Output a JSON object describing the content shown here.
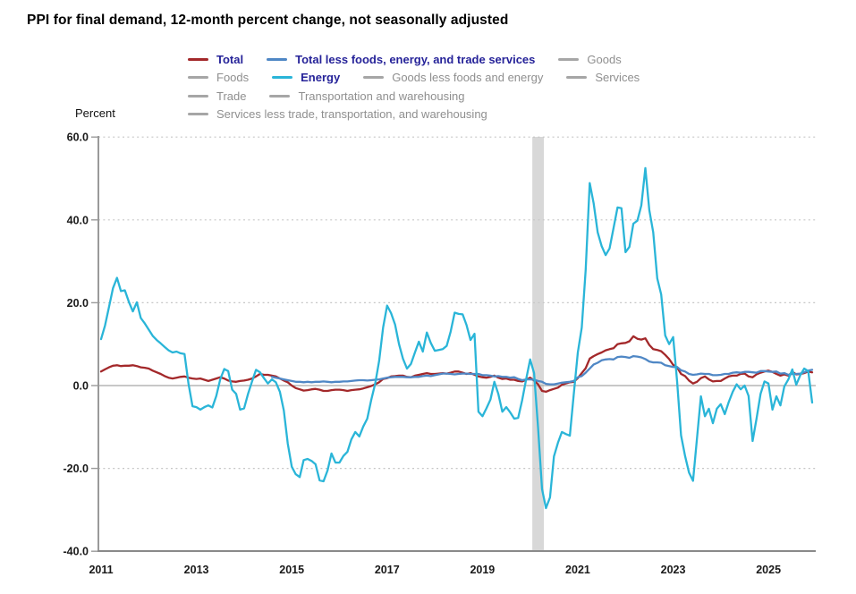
{
  "title": "PPI for final demand, 12-month percent change, not seasonally adjusted",
  "legend": {
    "active_text_color": "#262399",
    "inactive_text_color": "#8f8f8f",
    "inactive_swatch_color": "#a6a6a6",
    "rows": [
      [
        {
          "label": "Total",
          "active": true,
          "color": "#a3282a"
        },
        {
          "label": "Total less foods, energy, and trade services",
          "active": true,
          "color": "#4f87c5"
        },
        {
          "label": "Goods",
          "active": false
        }
      ],
      [
        {
          "label": "Foods",
          "active": false
        },
        {
          "label": "Energy",
          "active": true,
          "color": "#2ab5d8"
        },
        {
          "label": "Goods less foods and energy",
          "active": false
        },
        {
          "label": "Services",
          "active": false
        }
      ],
      [
        {
          "label": "Trade",
          "active": false
        },
        {
          "label": "Transportation and warehousing",
          "active": false
        }
      ],
      [
        {
          "label": "Services less trade, transportation, and warehousing",
          "active": false
        }
      ]
    ]
  },
  "chart_data": {
    "type": "line",
    "title": "PPI for final demand, 12-month percent change, not seasonally adjusted",
    "ylabel": "Percent",
    "xlabel": "",
    "ylim": [
      -40,
      60
    ],
    "y_ticks": [
      60,
      40,
      20,
      0,
      -20,
      -40
    ],
    "y_tick_labels": [
      "60.0",
      "40.0",
      "20.0",
      "0.0",
      "-20.0",
      "-40.0"
    ],
    "x_tick_labels": [
      "2011",
      "2013",
      "2015",
      "2017",
      "2019",
      "2021",
      "2023",
      "2025"
    ],
    "x_tick_years": [
      2011,
      2013,
      2015,
      2017,
      2019,
      2021,
      2023,
      2025
    ],
    "x_start": "2011-01",
    "x_end": "2025-12",
    "x_frequency": "monthly",
    "grid": "horizontal dotted at 60/40/20/-20, solid line at 0",
    "legend_position": "top",
    "axis_color": "#9a9a9a",
    "grid_color": "#c6c6c6",
    "zero_line_color": "#a8a8a8",
    "recession_shading": {
      "start": "2020-02",
      "end": "2020-04",
      "color": "#d8d8d8"
    },
    "series": [
      {
        "name": "Total",
        "color": "#a3282a",
        "values": [
          3.4,
          3.9,
          4.4,
          4.8,
          4.9,
          4.7,
          4.8,
          4.8,
          4.9,
          4.7,
          4.4,
          4.3,
          4.1,
          3.6,
          3.2,
          2.8,
          2.3,
          1.9,
          1.7,
          1.9,
          2.1,
          2.2,
          1.9,
          1.7,
          1.6,
          1.7,
          1.4,
          1.1,
          1.4,
          1.7,
          2.0,
          1.7,
          1.2,
          1.0,
          0.9,
          1.1,
          1.2,
          1.4,
          1.7,
          2.2,
          2.8,
          2.6,
          2.6,
          2.4,
          2.2,
          1.7,
          1.2,
          0.8,
          0.0,
          -0.6,
          -0.9,
          -1.2,
          -1.1,
          -0.9,
          -0.8,
          -1.0,
          -1.3,
          -1.3,
          -1.1,
          -1.0,
          -1.0,
          -1.1,
          -1.3,
          -1.1,
          -1.0,
          -0.9,
          -0.7,
          -0.4,
          -0.1,
          0.3,
          0.8,
          1.6,
          1.8,
          2.2,
          2.3,
          2.4,
          2.4,
          2.1,
          2.0,
          2.4,
          2.6,
          2.8,
          3.0,
          2.8,
          2.8,
          2.9,
          3.0,
          2.9,
          3.1,
          3.4,
          3.4,
          3.1,
          2.8,
          3.0,
          2.6,
          2.2,
          2.0,
          1.9,
          2.1,
          2.4,
          1.9,
          1.6,
          1.7,
          1.4,
          1.4,
          1.1,
          1.0,
          1.4,
          1.9,
          1.2,
          0.3,
          -1.3,
          -1.5,
          -1.1,
          -0.8,
          -0.5,
          0.2,
          0.5,
          0.8,
          0.9,
          1.8,
          3.0,
          4.2,
          6.5,
          7.1,
          7.6,
          8.0,
          8.5,
          8.8,
          9.0,
          10.0,
          10.2,
          10.3,
          10.7,
          11.9,
          11.3,
          11.1,
          11.4,
          9.8,
          8.8,
          8.6,
          8.3,
          7.4,
          6.4,
          5.0,
          4.4,
          2.8,
          2.3,
          1.2,
          0.5,
          0.9,
          1.8,
          2.2,
          1.5,
          1.0,
          1.1,
          1.1,
          1.7,
          2.2,
          2.4,
          2.4,
          2.8,
          2.9,
          2.2,
          2.0,
          2.7,
          3.1,
          3.4,
          3.6,
          3.3,
          2.8,
          2.4,
          2.7,
          2.4,
          3.3,
          2.7,
          2.8,
          3.0,
          3.4,
          3.2
        ]
      },
      {
        "name": "Total less foods, energy, and trade services",
        "color": "#4f87c5",
        "values": [
          null,
          null,
          null,
          null,
          null,
          null,
          null,
          null,
          null,
          null,
          null,
          null,
          null,
          null,
          null,
          null,
          null,
          null,
          null,
          null,
          null,
          null,
          null,
          null,
          null,
          null,
          null,
          null,
          null,
          null,
          null,
          null,
          null,
          null,
          null,
          null,
          null,
          null,
          null,
          null,
          null,
          null,
          null,
          2.1,
          1.9,
          1.7,
          1.5,
          1.3,
          1.1,
          0.9,
          0.9,
          0.8,
          0.9,
          0.8,
          0.9,
          0.9,
          1.0,
          0.9,
          0.8,
          0.9,
          0.9,
          1.0,
          1.0,
          1.1,
          1.2,
          1.3,
          1.3,
          1.2,
          1.3,
          1.4,
          1.5,
          1.7,
          1.9,
          2.0,
          2.1,
          2.1,
          2.1,
          2.0,
          2.0,
          2.1,
          2.1,
          2.3,
          2.4,
          2.3,
          2.5,
          2.7,
          2.9,
          2.9,
          2.8,
          2.7,
          2.8,
          2.9,
          2.9,
          2.8,
          2.8,
          2.8,
          2.5,
          2.5,
          2.4,
          2.2,
          2.3,
          2.1,
          2.1,
          1.9,
          2.0,
          1.6,
          1.3,
          1.5,
          1.5,
          1.4,
          1.1,
          0.9,
          0.4,
          0.3,
          0.3,
          0.5,
          0.7,
          0.8,
          0.9,
          1.1,
          2.0,
          2.3,
          3.1,
          4.1,
          5.1,
          5.5,
          6.1,
          6.3,
          6.4,
          6.3,
          6.9,
          7.0,
          6.9,
          6.7,
          7.1,
          7.0,
          6.8,
          6.4,
          5.8,
          5.6,
          5.6,
          5.5,
          4.9,
          4.7,
          4.5,
          4.5,
          3.7,
          3.4,
          2.8,
          2.6,
          2.7,
          2.9,
          2.8,
          2.8,
          2.5,
          2.5,
          2.6,
          2.8,
          2.8,
          3.1,
          3.2,
          3.1,
          3.3,
          3.3,
          3.2,
          3.1,
          3.5,
          3.5,
          3.4,
          3.3,
          3.4,
          2.9,
          3.0,
          2.6,
          2.8,
          2.8,
          2.9,
          3.2,
          3.6,
          3.8
        ]
      },
      {
        "name": "Energy",
        "color": "#2ab5d8",
        "values": [
          11.2,
          14.5,
          19.0,
          23.5,
          26.0,
          22.8,
          23.0,
          20.2,
          17.9,
          20.1,
          16.3,
          15.0,
          13.5,
          12.0,
          11.0,
          10.2,
          9.3,
          8.5,
          8.0,
          8.2,
          7.8,
          7.6,
          0.5,
          -5.0,
          -5.2,
          -5.8,
          -5.2,
          -4.8,
          -5.3,
          -2.5,
          1.5,
          4.0,
          3.5,
          -1.0,
          -2.0,
          -5.8,
          -5.5,
          -2.0,
          1.0,
          3.8,
          3.2,
          1.8,
          0.5,
          1.5,
          0.8,
          -1.5,
          -6.0,
          -14.0,
          -19.6,
          -21.4,
          -22.1,
          -18.0,
          -17.7,
          -18.2,
          -19.0,
          -22.9,
          -23.1,
          -20.5,
          -16.4,
          -18.6,
          -18.6,
          -17.0,
          -16.0,
          -13.0,
          -11.2,
          -12.3,
          -9.9,
          -8.0,
          -3.5,
          0.5,
          6.0,
          14.0,
          19.3,
          17.5,
          14.7,
          10.0,
          6.5,
          4.1,
          5.2,
          8.0,
          10.6,
          8.2,
          12.8,
          10.3,
          8.4,
          8.6,
          8.8,
          9.6,
          13.0,
          17.6,
          17.3,
          17.2,
          14.6,
          11.0,
          12.5,
          -6.3,
          -7.4,
          -5.5,
          -3.4,
          0.9,
          -2.0,
          -6.3,
          -5.2,
          -6.5,
          -8.0,
          -7.8,
          -3.5,
          1.5,
          6.3,
          3.0,
          -10.0,
          -25.0,
          -29.6,
          -27.0,
          -17.1,
          -13.8,
          -11.2,
          -11.7,
          -12.1,
          -2.0,
          8.0,
          14.0,
          28.0,
          48.9,
          44.0,
          37.0,
          33.7,
          31.5,
          33.1,
          38.0,
          43.0,
          42.8,
          32.2,
          33.5,
          39.1,
          39.8,
          43.5,
          52.5,
          42.4,
          37.0,
          25.9,
          22.0,
          12.1,
          10.0,
          11.7,
          1.0,
          -12.0,
          -17.0,
          -21.0,
          -23.0,
          -12.8,
          -2.6,
          -7.4,
          -5.6,
          -9.1,
          -5.6,
          -4.5,
          -6.9,
          -4.0,
          -1.5,
          0.3,
          -0.9,
          0.0,
          -2.5,
          -13.4,
          -8.0,
          -2.0,
          1.0,
          0.5,
          -5.8,
          -2.6,
          -4.8,
          -0.2,
          1.5,
          3.9,
          0.2,
          2.5,
          4.1,
          3.5,
          -4.1
        ]
      }
    ]
  }
}
